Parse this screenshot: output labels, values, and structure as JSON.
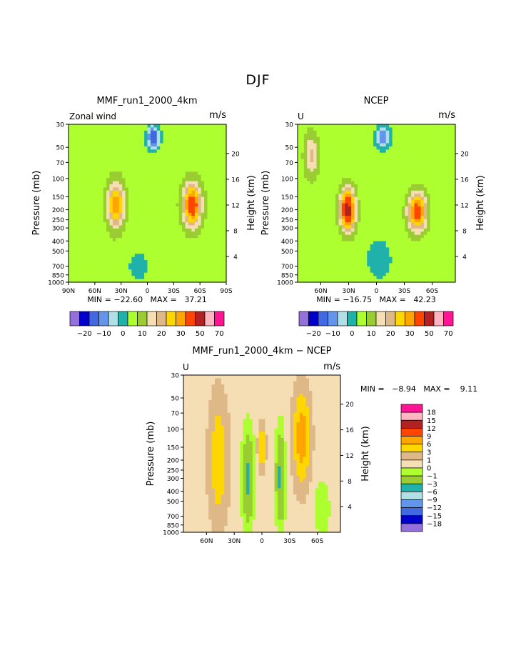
{
  "suptitle": "DJF",
  "palettes": {
    "abs": [
      "#9370db",
      "#0000cd",
      "#4169e1",
      "#6495ed",
      "#b0e0e6",
      "#20b2aa",
      "#adff2f",
      "#9acd32",
      "#f5deb3",
      "#deb887",
      "#ffd700",
      "#ffa500",
      "#ff4500",
      "#b22222",
      "#ffb6c1",
      "#ff1493"
    ],
    "diff": [
      "#9370db",
      "#0000cd",
      "#4169e1",
      "#6495ed",
      "#b0e0e6",
      "#20b2aa",
      "#9acd32",
      "#adff2f",
      "#f5deb3",
      "#deb887",
      "#ffd700",
      "#ffa500",
      "#ff4500",
      "#b22222",
      "#ffb6c1",
      "#ff1493"
    ]
  },
  "chart_data": [
    {
      "id": "p1",
      "type": "heatmap",
      "title": "MMF_run1_2000_4km",
      "left_label": "Zonal wind",
      "units": "m/s",
      "ylabel": "Pressure (mb)",
      "y2label": "Height (km)",
      "pressure_ticks": [
        "30",
        "50",
        "70",
        "100",
        "150",
        "200",
        "250",
        "300",
        "400",
        "500",
        "700",
        "850",
        "1000"
      ],
      "height_ticks": [
        "4",
        "8",
        "12",
        "16",
        "20"
      ],
      "x_ticks": [
        "90N",
        "60N",
        "30N",
        "0",
        "30S",
        "60S",
        "90S"
      ],
      "minmax": "MIN = −22.60   MAX =   37.21",
      "cb_labels": [
        "−20",
        "−10",
        "0",
        "10",
        "20",
        "30",
        "50",
        "70"
      ],
      "features": [
        {
          "lat": -7,
          "p": 40,
          "amp": -24,
          "wx": 7,
          "wp": 0.25
        },
        {
          "lat": 36,
          "p": 180,
          "amp": 27,
          "wx": 9,
          "wp": 0.48
        },
        {
          "lat": -51,
          "p": 180,
          "amp": 34,
          "wx": 10,
          "wp": 0.45
        },
        {
          "lat": 10,
          "p": 700,
          "amp": -6,
          "wx": 12,
          "wp": 0.35
        },
        {
          "lat": 65,
          "p": 800,
          "amp": -3,
          "wx": 10,
          "wp": 0.3
        }
      ],
      "base": 3
    },
    {
      "id": "p2",
      "type": "heatmap",
      "title": "NCEP",
      "left_label": "U",
      "units": "m/s",
      "ylabel": "Pressure (mb)",
      "y2label": "Height (km)",
      "pressure_ticks": [
        "30",
        "50",
        "70",
        "100",
        "150",
        "200",
        "250",
        "300",
        "400",
        "500",
        "700",
        "850",
        "1000"
      ],
      "height_ticks": [
        "4",
        "8",
        "12",
        "16",
        "20"
      ],
      "x_ticks": [
        "60N",
        "30N",
        "0",
        "30S",
        "60S"
      ],
      "minmax": "MIN = −16.75   MAX =   42.23",
      "cb_labels": [
        "−20",
        "−10",
        "0",
        "10",
        "20",
        "30",
        "50",
        "70"
      ],
      "features": [
        {
          "lat": -7,
          "p": 40,
          "amp": -17,
          "wx": 7,
          "wp": 0.22
        },
        {
          "lat": 31,
          "p": 200,
          "amp": 43,
          "wx": 8,
          "wp": 0.45
        },
        {
          "lat": 70,
          "p": 60,
          "amp": 14,
          "wx": 8,
          "wp": 0.5
        },
        {
          "lat": -44,
          "p": 210,
          "amp": 33,
          "wx": 10,
          "wp": 0.42
        },
        {
          "lat": -3,
          "p": 600,
          "amp": -4,
          "wx": 15,
          "wp": 0.5
        }
      ],
      "base": 2
    },
    {
      "id": "p3",
      "type": "heatmap",
      "title": "MMF_run1_2000_4km − NCEP",
      "left_label": "U",
      "units": "m/s",
      "ylabel": "Pressure (mb)",
      "y2label": "Height (km)",
      "pressure_ticks": [
        "30",
        "50",
        "70",
        "100",
        "150",
        "200",
        "250",
        "300",
        "400",
        "500",
        "700",
        "850",
        "1000"
      ],
      "height_ticks": [
        "4",
        "8",
        "12",
        "16",
        "20"
      ],
      "x_ticks": [
        "60N",
        "30N",
        "0",
        "30S",
        "60S"
      ],
      "minmax": "MIN =   −8.94   MAX =    9.11",
      "cb_labels": [
        "18",
        "15",
        "12",
        "9",
        "6",
        "3",
        "1",
        "0",
        "−1",
        "−3",
        "−6",
        "−9",
        "−12",
        "−15",
        "−18"
      ],
      "features": [
        {
          "lat": 47,
          "p": 200,
          "amp": 5,
          "wx": 9,
          "wp": 1.2
        },
        {
          "lat": 15,
          "p": 300,
          "amp": -4,
          "wx": 6,
          "wp": 1.0
        },
        {
          "lat": 0,
          "p": 150,
          "amp": 7,
          "wx": 3.5,
          "wp": 0.4
        },
        {
          "lat": -43,
          "p": 120,
          "amp": 8,
          "wx": 8,
          "wp": 0.9
        },
        {
          "lat": -20,
          "p": 300,
          "amp": -4,
          "wx": 5,
          "wp": 1.0
        },
        {
          "lat": -65,
          "p": 600,
          "amp": -1.5,
          "wx": 8,
          "wp": 0.6
        }
      ],
      "base": 0.5
    }
  ]
}
